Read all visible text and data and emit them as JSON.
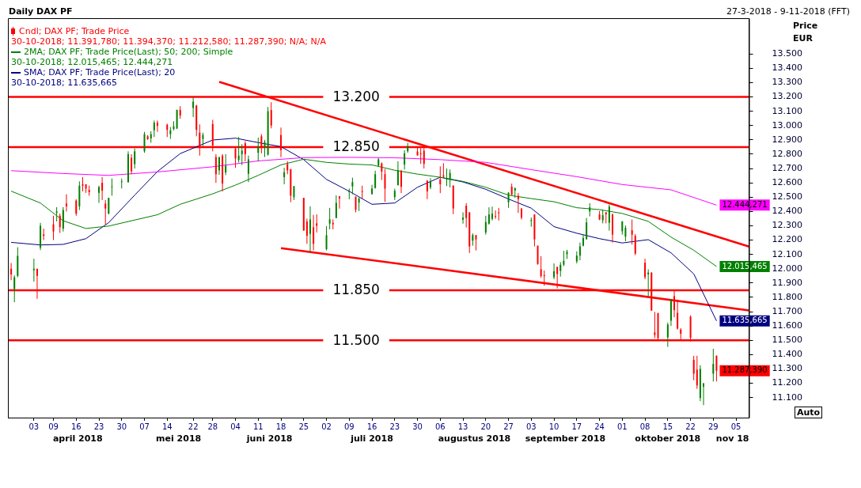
{
  "chart_data": {
    "type": "candlestick",
    "title": "Daily DAX PF",
    "subtitle": "27-3-2018 - 9-11-2018 (FFT)",
    "ylabel": "Price EUR",
    "xlim": [
      "2018-03-26",
      "2018-11-09"
    ],
    "ylim": [
      10960,
      13750
    ],
    "xticks": [
      {
        "value": "2018-04-03",
        "label": "03"
      },
      {
        "value": "2018-04-09",
        "label": "09"
      },
      {
        "value": "2018-04-16",
        "label": "16"
      },
      {
        "value": "2018-04-23",
        "label": "23"
      },
      {
        "value": "2018-04-30",
        "label": "30"
      },
      {
        "value": "2018-05-07",
        "label": "07"
      },
      {
        "value": "2018-05-14",
        "label": "14"
      },
      {
        "value": "2018-05-22",
        "label": "22"
      },
      {
        "value": "2018-05-28",
        "label": "28"
      },
      {
        "value": "2018-06-04",
        "label": "04"
      },
      {
        "value": "2018-06-11",
        "label": "11"
      },
      {
        "value": "2018-06-18",
        "label": "18"
      },
      {
        "value": "2018-06-25",
        "label": "25"
      },
      {
        "value": "2018-07-02",
        "label": "02"
      },
      {
        "value": "2018-07-09",
        "label": "09"
      },
      {
        "value": "2018-07-16",
        "label": "16"
      },
      {
        "value": "2018-07-23",
        "label": "23"
      },
      {
        "value": "2018-07-30",
        "label": "30"
      },
      {
        "value": "2018-08-06",
        "label": "06"
      },
      {
        "value": "2018-08-13",
        "label": "13"
      },
      {
        "value": "2018-08-20",
        "label": "20"
      },
      {
        "value": "2018-08-27",
        "label": "27"
      },
      {
        "value": "2018-09-03",
        "label": "03"
      },
      {
        "value": "2018-09-10",
        "label": "10"
      },
      {
        "value": "2018-09-17",
        "label": "17"
      },
      {
        "value": "2018-09-24",
        "label": "24"
      },
      {
        "value": "2018-10-01",
        "label": "01"
      },
      {
        "value": "2018-10-08",
        "label": "08"
      },
      {
        "value": "2018-10-15",
        "label": "15"
      },
      {
        "value": "2018-10-22",
        "label": "22"
      },
      {
        "value": "2018-10-29",
        "label": "29"
      },
      {
        "value": "2018-11-05",
        "label": "05"
      }
    ],
    "yticks": [
      {
        "value": 11100,
        "label": "11.100"
      },
      {
        "value": 11200,
        "label": "11.200"
      },
      {
        "value": 11300,
        "label": "11.300"
      },
      {
        "value": 11400,
        "label": "11.400"
      },
      {
        "value": 11500,
        "label": "11.500"
      },
      {
        "value": 11600,
        "label": "11.600"
      },
      {
        "value": 11700,
        "label": "11.700"
      },
      {
        "value": 11800,
        "label": "11.800"
      },
      {
        "value": 11900,
        "label": "11.900"
      },
      {
        "value": 12000,
        "label": "12.000"
      },
      {
        "value": 12100,
        "label": "12.100"
      },
      {
        "value": 12200,
        "label": "12.200"
      },
      {
        "value": 12300,
        "label": "12.300"
      },
      {
        "value": 12400,
        "label": "12.400"
      },
      {
        "value": 12500,
        "label": "12.500"
      },
      {
        "value": 12600,
        "label": "12.600"
      },
      {
        "value": 12700,
        "label": "12.700"
      },
      {
        "value": 12800,
        "label": "12.800"
      },
      {
        "value": 12900,
        "label": "12.900"
      },
      {
        "value": 13000,
        "label": "13.000"
      },
      {
        "value": 13100,
        "label": "13.100"
      },
      {
        "value": 13200,
        "label": "13.200"
      },
      {
        "value": 13300,
        "label": "13.300"
      },
      {
        "value": 13400,
        "label": "13.400"
      },
      {
        "value": 13500,
        "label": "13.500"
      }
    ],
    "legend": "top left",
    "ref_lines": [
      {
        "axis": "y",
        "value": 13200,
        "label": "13.200",
        "color": "#ff0000"
      },
      {
        "axis": "y",
        "value": 12850,
        "label": "12.850",
        "color": "#ff0000"
      },
      {
        "axis": "y",
        "value": 11850,
        "label": "11.850",
        "color": "#ff0000"
      },
      {
        "axis": "y",
        "value": 11500,
        "label": "11.500",
        "color": "#ff0000"
      }
    ],
    "annotations": [
      "30-10-2018; 11.391,780; 11.394,370; 11.212,580; 11.287,390; N/A; N/A",
      "30-10-2018; 12.015,465; 12.444,271",
      "30-10-2018; 11.635,665",
      "april 2018",
      "mei 2018",
      "juni 2018",
      "juli 2018",
      "augustus 2018",
      "september 2018",
      "oktober 2018",
      "nov 18",
      "Auto"
    ],
    "series": [
      {
        "type": "candlestick",
        "name": "Cndl; DAX PF; Trade Price",
        "color": "#ff0000",
        "colors": [
          "#ff0000",
          "#008000",
          "#008000",
          "#008000",
          "#ff0000",
          "#008000",
          "#ff0000",
          "#ff0000",
          "#008000",
          "#ff0000",
          "#008000",
          "#ff0000",
          "#ff0000",
          "#008000",
          "#ff0000",
          "#ff0000",
          "#ff0000",
          "#008000",
          "#ff0000",
          "#ff0000",
          "#008000",
          "#008000",
          "#008000",
          "#008000",
          "#ff0000",
          "#008000",
          "#008000",
          "#ff0000",
          "#008000",
          "#008000",
          "#ff0000",
          "#ff0000",
          "#008000",
          "#008000",
          "#008000",
          "#ff0000",
          "#008000",
          "#ff0000",
          "#ff0000",
          "#008000",
          "#ff0000",
          "#ff0000",
          "#008000",
          "#ff0000",
          "#008000",
          "#ff0000",
          "#008000",
          "#008000",
          "#ff0000",
          "#008000",
          "#008000",
          "#ff0000",
          "#008000",
          "#008000",
          "#ff0000",
          "#ff0000",
          "#008000",
          "#ff0000",
          "#ff0000",
          "#008000",
          "#ff0000",
          "#ff0000",
          "#008000",
          "#ff0000",
          "#ff0000",
          "#008000",
          "#008000",
          "#ff0000",
          "#008000",
          "#ff0000",
          "#008000",
          "#008000",
          "#ff0000",
          "#008000",
          "#ff0000",
          "#008000",
          "#008000",
          "#008000",
          "#ff0000",
          "#ff0000",
          "#008000",
          "#008000",
          "#ff0000",
          "#008000",
          "#008000",
          "#ff0000",
          "#ff0000",
          "#ff0000",
          "#ff0000",
          "#008000",
          "#ff0000",
          "#ff0000",
          "#008000",
          "#008000",
          "#ff0000",
          "#008000",
          "#ff0000",
          "#ff0000",
          "#008000",
          "#ff0000",
          "#008000",
          "#008000",
          "#008000",
          "#ff0000",
          "#ff0000",
          "#008000",
          "#ff0000",
          "#008000",
          "#ff0000",
          "#ff0000",
          "#008000",
          "#ff0000",
          "#ff0000",
          "#ff0000",
          "#ff0000",
          "#008000",
          "#ff0000",
          "#008000",
          "#008000",
          "#008000",
          "#008000",
          "#008000",
          "#008000",
          "#008000",
          "#008000",
          "#ff0000",
          "#008000",
          "#ff0000",
          "#008000",
          "#ff0000",
          "#008000",
          "#008000",
          "#ff0000",
          "#ff0000",
          "#ff0000",
          "#008000",
          "#ff0000",
          "#ff0000",
          "#ff0000",
          "#008000",
          "#008000",
          "#ff0000",
          "#ff0000",
          "#ff0000",
          "#ff0000",
          "#ff0000",
          "#ff0000",
          "#008000",
          "#008000",
          "#008000",
          "#ff0000"
        ],
        "x": [
          "2018-03-27",
          "2018-03-28",
          "2018-03-29",
          "2018-04-03",
          "2018-04-04",
          "2018-04-05",
          "2018-04-06",
          "2018-04-09",
          "2018-04-10",
          "2018-04-11",
          "2018-04-12",
          "2018-04-13",
          "2018-04-16",
          "2018-04-17",
          "2018-04-18",
          "2018-04-19",
          "2018-04-20",
          "2018-04-23",
          "2018-04-24",
          "2018-04-25",
          "2018-04-26",
          "2018-04-27",
          "2018-04-30",
          "2018-05-02",
          "2018-05-03",
          "2018-05-04",
          "2018-05-07",
          "2018-05-08",
          "2018-05-09",
          "2018-05-10",
          "2018-05-11",
          "2018-05-14",
          "2018-05-15",
          "2018-05-16",
          "2018-05-17",
          "2018-05-18",
          "2018-05-22",
          "2018-05-23",
          "2018-05-24",
          "2018-05-25",
          "2018-05-28",
          "2018-05-29",
          "2018-05-30",
          "2018-05-31",
          "2018-06-01",
          "2018-06-04",
          "2018-06-05",
          "2018-06-06",
          "2018-06-07",
          "2018-06-08",
          "2018-06-11",
          "2018-06-12",
          "2018-06-13",
          "2018-06-14",
          "2018-06-15",
          "2018-06-18",
          "2018-06-19",
          "2018-06-20",
          "2018-06-21",
          "2018-06-22",
          "2018-06-25",
          "2018-06-26",
          "2018-06-27",
          "2018-06-28",
          "2018-06-29",
          "2018-07-02",
          "2018-07-03",
          "2018-07-04",
          "2018-07-05",
          "2018-07-06",
          "2018-07-09",
          "2018-07-10",
          "2018-07-11",
          "2018-07-12",
          "2018-07-13",
          "2018-07-16",
          "2018-07-17",
          "2018-07-18",
          "2018-07-19",
          "2018-07-20",
          "2018-07-23",
          "2018-07-24",
          "2018-07-25",
          "2018-07-26",
          "2018-07-27",
          "2018-07-30",
          "2018-07-31",
          "2018-08-01",
          "2018-08-02",
          "2018-08-03",
          "2018-08-06",
          "2018-08-07",
          "2018-08-08",
          "2018-08-09",
          "2018-08-10",
          "2018-08-13",
          "2018-08-14",
          "2018-08-15",
          "2018-08-16",
          "2018-08-17",
          "2018-08-20",
          "2018-08-21",
          "2018-08-22",
          "2018-08-23",
          "2018-08-24",
          "2018-08-27",
          "2018-08-28",
          "2018-08-29",
          "2018-08-30",
          "2018-08-31",
          "2018-09-03",
          "2018-09-04",
          "2018-09-05",
          "2018-09-06",
          "2018-09-07",
          "2018-09-10",
          "2018-09-11",
          "2018-09-12",
          "2018-09-13",
          "2018-09-14",
          "2018-09-17",
          "2018-09-18",
          "2018-09-19",
          "2018-09-20",
          "2018-09-21",
          "2018-09-24",
          "2018-09-25",
          "2018-09-26",
          "2018-09-27",
          "2018-09-28",
          "2018-10-01",
          "2018-10-02",
          "2018-10-04",
          "2018-10-05",
          "2018-10-08",
          "2018-10-09",
          "2018-10-10",
          "2018-10-11",
          "2018-10-12",
          "2018-10-15",
          "2018-10-16",
          "2018-10-17",
          "2018-10-18",
          "2018-10-19",
          "2018-10-22",
          "2018-10-23",
          "2018-10-24",
          "2018-10-25",
          "2018-10-26",
          "2018-10-29",
          "2018-10-30"
        ],
        "ohlc": [
          [
            12000,
            12040,
            11920,
            11960
          ],
          [
            11857,
            11954,
            11766,
            11940
          ],
          [
            11950,
            12150,
            11940,
            12090
          ],
          [
            11990,
            12070,
            11910,
            12000
          ],
          [
            12000,
            12000,
            11790,
            11950
          ],
          [
            12147,
            12320,
            12130,
            12300
          ],
          [
            12240,
            12280,
            12200,
            12230
          ],
          [
            12310,
            12370,
            12200,
            12260
          ],
          [
            12390,
            12430,
            12330,
            12400
          ],
          [
            12370,
            12385,
            12250,
            12290
          ],
          [
            12280,
            12430,
            12260,
            12410
          ],
          [
            12455,
            12520,
            12400,
            12436
          ],
          [
            12476,
            12485,
            12370,
            12385
          ],
          [
            12436,
            12610,
            12410,
            12580
          ],
          [
            12590,
            12640,
            12540,
            12580
          ],
          [
            12590,
            12590,
            12530,
            12560
          ],
          [
            12550,
            12580,
            12510,
            12535
          ],
          [
            12530,
            12580,
            12460,
            12570
          ],
          [
            12600,
            12640,
            12480,
            12545
          ],
          [
            12455,
            12480,
            12310,
            12420
          ],
          [
            12385,
            12495,
            12380,
            12495
          ],
          [
            12570,
            12630,
            12510,
            12575
          ],
          [
            12605,
            12630,
            12560,
            12610
          ],
          [
            12605,
            12820,
            12600,
            12800
          ],
          [
            12775,
            12800,
            12660,
            12680
          ],
          [
            12730,
            12840,
            12700,
            12820
          ],
          [
            12820,
            12956,
            12810,
            12940
          ],
          [
            12925,
            12934,
            12900,
            12905
          ],
          [
            12910,
            12960,
            12880,
            12940
          ],
          [
            12967,
            13035,
            12920,
            13020
          ],
          [
            13020,
            13035,
            12956,
            12998
          ],
          [
            13006,
            13013,
            12920,
            12970
          ],
          [
            12940,
            12990,
            12907,
            12967
          ],
          [
            12975,
            13030,
            12967,
            12995
          ],
          [
            12980,
            13110,
            12975,
            13110
          ],
          [
            13110,
            13136,
            13048,
            13070
          ],
          [
            13123,
            13196,
            13060,
            13167
          ],
          [
            13140,
            13145,
            12925,
            12970
          ],
          [
            12950,
            13008,
            12790,
            12850
          ],
          [
            12907,
            12950,
            12857,
            12934
          ],
          [
            13010,
            13040,
            12820,
            12860
          ],
          [
            12780,
            12800,
            12600,
            12660
          ],
          [
            12687,
            12780,
            12656,
            12780
          ],
          [
            12790,
            12800,
            12540,
            12595
          ],
          [
            12672,
            12800,
            12654,
            12720
          ],
          [
            12837,
            12850,
            12705,
            12770
          ],
          [
            12760,
            12920,
            12742,
            12790
          ],
          [
            12800,
            12870,
            12724,
            12825
          ],
          [
            12876,
            12890,
            12750,
            12800
          ],
          [
            12663,
            12790,
            12605,
            12764
          ],
          [
            12810,
            12916,
            12750,
            12856
          ],
          [
            12925,
            12940,
            12806,
            12843
          ],
          [
            12847,
            12900,
            12780,
            12885
          ],
          [
            12797,
            13130,
            12790,
            13100
          ],
          [
            13108,
            13163,
            12980,
            13000
          ],
          [
            12934,
            12986,
            12779,
            12828
          ],
          [
            12640,
            12705,
            12590,
            12674
          ],
          [
            12730,
            12750,
            12660,
            12687
          ],
          [
            12696,
            12696,
            12465,
            12510
          ],
          [
            12500,
            12577,
            12480,
            12577
          ],
          [
            12495,
            12495,
            12266,
            12266
          ],
          [
            12330,
            12350,
            12174,
            12230
          ],
          [
            12244,
            12436,
            12120,
            12344
          ],
          [
            12290,
            12376,
            12128,
            12174
          ],
          [
            12317,
            12380,
            12253,
            12300
          ],
          [
            12137,
            12297,
            12128,
            12234
          ],
          [
            12315,
            12425,
            12275,
            12345
          ],
          [
            12320,
            12344,
            12275,
            12310
          ],
          [
            12354,
            12513,
            12354,
            12460
          ],
          [
            12506,
            12506,
            12420,
            12490
          ],
          [
            12535,
            12560,
            12485,
            12540
          ],
          [
            12575,
            12636,
            12520,
            12605
          ],
          [
            12504,
            12504,
            12394,
            12412
          ],
          [
            12462,
            12498,
            12403,
            12490
          ],
          [
            12542,
            12580,
            12490,
            12538
          ],
          [
            12522,
            12586,
            12517,
            12560
          ],
          [
            12564,
            12685,
            12560,
            12660
          ],
          [
            12720,
            12773,
            12714,
            12764
          ],
          [
            12736,
            12742,
            12620,
            12678
          ],
          [
            12660,
            12696,
            12467,
            12560
          ],
          [
            12500,
            12559,
            12480,
            12544
          ],
          [
            12583,
            12751,
            12583,
            12687
          ],
          [
            12682,
            12691,
            12528,
            12572
          ],
          [
            12727,
            12828,
            12693,
            12806
          ],
          [
            12821,
            12879,
            12810,
            12856
          ],
          [
            12819,
            12846,
            12791,
            12791
          ],
          [
            12806,
            12843,
            12733,
            12800
          ],
          [
            12824,
            12852,
            12700,
            12733
          ],
          [
            12616,
            12616,
            12486,
            12540
          ],
          [
            12568,
            12632,
            12555,
            12608
          ],
          [
            12623,
            12715,
            12528,
            12590
          ],
          [
            12652,
            12737,
            12638,
            12643
          ],
          [
            12623,
            12700,
            12577,
            12632
          ],
          [
            12619,
            12693,
            12568,
            12669
          ],
          [
            12581,
            12581,
            12381,
            12421
          ],
          [
            12343,
            12394,
            12315,
            12357
          ],
          [
            12440,
            12458,
            12288,
            12354
          ],
          [
            12394,
            12394,
            12110,
            12156
          ],
          [
            12196,
            12247,
            12161,
            12235
          ],
          [
            12235,
            12235,
            12128,
            12205
          ],
          [
            12253,
            12370,
            12238,
            12326
          ],
          [
            12315,
            12429,
            12308,
            12379
          ],
          [
            12348,
            12434,
            12337,
            12385
          ],
          [
            12368,
            12407,
            12348,
            12363
          ],
          [
            12394,
            12425,
            12337,
            12388
          ],
          [
            12464,
            12535,
            12425,
            12531
          ],
          [
            12573,
            12595,
            12513,
            12518
          ],
          [
            12546,
            12568,
            12495,
            12562
          ],
          [
            12509,
            12528,
            12390,
            12486
          ],
          [
            12421,
            12421,
            12344,
            12357
          ],
          [
            12333,
            12357,
            12293,
            12339
          ],
          [
            12379,
            12379,
            12156,
            12205
          ],
          [
            12161,
            12161,
            12028,
            12033
          ],
          [
            11996,
            12088,
            11936,
            11949
          ],
          [
            11954,
            11987,
            11881,
            11952
          ],
          [
            11941,
            12037,
            11927,
            11982
          ],
          [
            12013,
            12013,
            11863,
            11963
          ],
          [
            11985,
            12046,
            11945,
            12028
          ],
          [
            12028,
            12125,
            12018,
            12055
          ],
          [
            12101,
            12132,
            12068,
            12119
          ],
          [
            12051,
            12121,
            12037,
            12092
          ],
          [
            12092,
            12183,
            12059,
            12156
          ],
          [
            12161,
            12238,
            12156,
            12214
          ],
          [
            12207,
            12354,
            12202,
            12324
          ],
          [
            12400,
            12458,
            12366,
            12429
          ],
          [
            12379,
            12403,
            12339,
            12344
          ],
          [
            12339,
            12412,
            12317,
            12374
          ],
          [
            12394,
            12394,
            12317,
            12381
          ],
          [
            12321,
            12449,
            12266,
            12434
          ],
          [
            12379,
            12385,
            12183,
            12238
          ],
          [
            12262,
            12333,
            12238,
            12330
          ],
          [
            12224,
            12302,
            12192,
            12286
          ],
          [
            12269,
            12344,
            12169,
            12238
          ],
          [
            12229,
            12242,
            12095,
            12106
          ],
          [
            12042,
            12070,
            11927,
            11941
          ],
          [
            11960,
            11996,
            11808,
            11973
          ],
          [
            11973,
            11975,
            11707,
            11707
          ],
          [
            11555,
            11698,
            11515,
            11537
          ],
          [
            11689,
            11693,
            11505,
            11515
          ],
          [
            11520,
            11624,
            11454,
            11610
          ],
          [
            11637,
            11789,
            11600,
            11777
          ],
          [
            11808,
            11844,
            11661,
            11711
          ],
          [
            11692,
            11784,
            11575,
            11582
          ],
          [
            11575,
            11585,
            11496,
            11546
          ],
          [
            11665,
            11674,
            11491,
            11518
          ],
          [
            11363,
            11392,
            11221,
            11267
          ],
          [
            11295,
            11392,
            11161,
            11185
          ],
          [
            11097,
            11326,
            11075,
            11300
          ],
          [
            11176,
            11203,
            11047,
            11198
          ],
          [
            11267,
            11441,
            11212,
            11335
          ],
          [
            11391.78,
            11394.37,
            11212.58,
            11287.39
          ]
        ],
        "value_labels": [
          null,
          null,
          null,
          null,
          null,
          null,
          null,
          null,
          null,
          null,
          null,
          null,
          null,
          null,
          null,
          null,
          null,
          null,
          null,
          null,
          null,
          null,
          null,
          null,
          null,
          null,
          null,
          null,
          null,
          null,
          null,
          null,
          null,
          null,
          null,
          null,
          null,
          null,
          null,
          null,
          null,
          null,
          null,
          null,
          null,
          null,
          null,
          null,
          null,
          null,
          null,
          null,
          null,
          null,
          null,
          null,
          null,
          null,
          null,
          null,
          null,
          null,
          null,
          null,
          null,
          null,
          null,
          null,
          null,
          null,
          null,
          null,
          null,
          null,
          null,
          null,
          null,
          null,
          null,
          null,
          null,
          null,
          null,
          null,
          null,
          null,
          null,
          null,
          null,
          null,
          null,
          null,
          null,
          null,
          null,
          null,
          null,
          null,
          null,
          null,
          null,
          null,
          null,
          null,
          null,
          null,
          null,
          null,
          null,
          null,
          null,
          null,
          null,
          null,
          null,
          null,
          null,
          null,
          null,
          null,
          null,
          null,
          null,
          null,
          null,
          null,
          null,
          null,
          null,
          null,
          null,
          null,
          null,
          null,
          null,
          null,
          null,
          null,
          null,
          null,
          null,
          null,
          null,
          null,
          null,
          null,
          null,
          null,
          null,
          null,
          "11.287,390"
        ]
      },
      {
        "type": "line",
        "name": "2MA; DAX PF; Trade Price(Last); 50; 200; Simple",
        "color": "#008000",
        "x": [
          "2018-03-27",
          "2018-04-05",
          "2018-04-12",
          "2018-04-19",
          "2018-04-26",
          "2018-05-04",
          "2018-05-11",
          "2018-05-18",
          "2018-05-28",
          "2018-06-04",
          "2018-06-11",
          "2018-06-18",
          "2018-06-25",
          "2018-07-02",
          "2018-07-09",
          "2018-07-16",
          "2018-07-23",
          "2018-07-30",
          "2018-08-06",
          "2018-08-13",
          "2018-08-20",
          "2018-08-27",
          "2018-09-03",
          "2018-09-10",
          "2018-09-17",
          "2018-09-24",
          "2018-10-01",
          "2018-10-09",
          "2018-10-16",
          "2018-10-23",
          "2018-10-30"
        ],
        "values": [
          12542,
          12459,
          12335,
          12281,
          12298,
          12340,
          12377,
          12450,
          12523,
          12584,
          12652,
          12725,
          12765,
          12743,
          12731,
          12725,
          12688,
          12661,
          12639,
          12610,
          12569,
          12514,
          12490,
          12468,
          12426,
          12413,
          12386,
          12331,
          12221,
          12129,
          12015.465
        ],
        "value_labels": [
          null,
          null,
          null,
          null,
          null,
          null,
          null,
          null,
          null,
          null,
          null,
          null,
          null,
          null,
          null,
          null,
          null,
          null,
          null,
          null,
          null,
          null,
          null,
          null,
          null,
          null,
          null,
          null,
          null,
          null,
          "12.015,465"
        ]
      },
      {
        "type": "line",
        "color": "#ff00ff",
        "x": [
          "2018-03-27",
          "2018-04-12",
          "2018-04-26",
          "2018-05-11",
          "2018-05-28",
          "2018-06-11",
          "2018-06-25",
          "2018-07-09",
          "2018-07-23",
          "2018-08-06",
          "2018-08-20",
          "2018-09-03",
          "2018-09-17",
          "2018-10-01",
          "2018-10-16",
          "2018-10-30"
        ],
        "values": [
          12685,
          12665,
          12652,
          12676,
          12712,
          12753,
          12776,
          12778,
          12775,
          12762,
          12743,
          12692,
          12643,
          12588,
          12551,
          12444.271
        ],
        "value_labels": [
          null,
          null,
          null,
          null,
          null,
          null,
          null,
          null,
          null,
          null,
          null,
          null,
          null,
          null,
          null,
          "12.444,271"
        ]
      },
      {
        "type": "line",
        "name": "SMA; DAX PF; Trade Price(Last); 20",
        "color": "#000080",
        "x": [
          "2018-03-27",
          "2018-04-05",
          "2018-04-12",
          "2018-04-19",
          "2018-04-26",
          "2018-05-04",
          "2018-05-11",
          "2018-05-18",
          "2018-05-28",
          "2018-06-04",
          "2018-06-11",
          "2018-06-18",
          "2018-06-25",
          "2018-07-02",
          "2018-07-09",
          "2018-07-16",
          "2018-07-23",
          "2018-07-30",
          "2018-08-06",
          "2018-08-13",
          "2018-08-20",
          "2018-08-27",
          "2018-09-03",
          "2018-09-10",
          "2018-09-17",
          "2018-09-24",
          "2018-10-01",
          "2018-10-09",
          "2018-10-16",
          "2018-10-23",
          "2018-10-30"
        ],
        "values": [
          12184,
          12166,
          12170,
          12210,
          12322,
          12514,
          12679,
          12804,
          12899,
          12912,
          12881,
          12853,
          12762,
          12624,
          12541,
          12450,
          12459,
          12569,
          12639,
          12606,
          12555,
          12487,
          12423,
          12294,
          12248,
          12210,
          12180,
          12203,
          12111,
          11964,
          11635.665
        ],
        "value_labels": [
          null,
          null,
          null,
          null,
          null,
          null,
          null,
          null,
          null,
          null,
          null,
          null,
          null,
          null,
          null,
          null,
          null,
          null,
          null,
          null,
          null,
          null,
          null,
          null,
          null,
          null,
          null,
          null,
          null,
          null,
          "11.635,665"
        ]
      },
      {
        "type": "line",
        "color": "#ff0000",
        "x": [
          "2018-05-30",
          "2018-11-09"
        ],
        "values": [
          13305,
          12155
        ]
      },
      {
        "type": "line",
        "color": "#ff0000",
        "x": [
          "2018-06-18",
          "2018-11-09"
        ],
        "values": [
          12144,
          11709
        ]
      }
    ]
  }
}
